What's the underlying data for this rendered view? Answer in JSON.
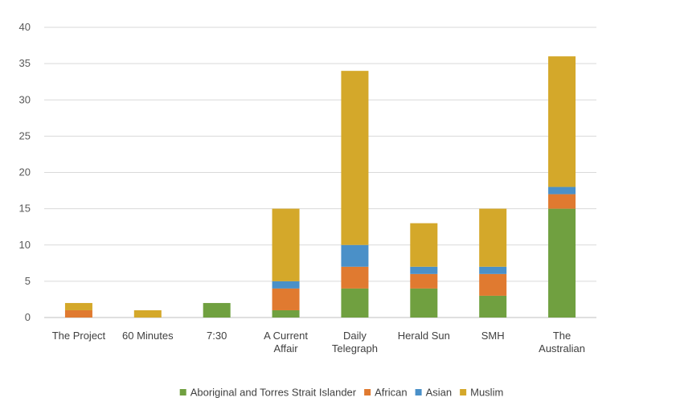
{
  "chart_data": {
    "type": "bar",
    "stacked": true,
    "title": "",
    "xlabel": "",
    "ylabel": "",
    "ylim": [
      0,
      40
    ],
    "yticks": [
      0,
      5,
      10,
      15,
      20,
      25,
      30,
      35,
      40
    ],
    "grid": true,
    "legend_position": "bottom",
    "categories": [
      [
        "The Project"
      ],
      [
        "60 Minutes"
      ],
      [
        "7:30"
      ],
      [
        "A Current",
        "Affair"
      ],
      [
        "Daily",
        "Telegraph"
      ],
      [
        "Herald Sun"
      ],
      [
        "SMH"
      ],
      [
        "The",
        "Australian"
      ]
    ],
    "series": [
      {
        "name": "Aboriginal and Torres Strait Islander",
        "color": "#70a040",
        "values": [
          0,
          0,
          2,
          1,
          4,
          4,
          3,
          15
        ]
      },
      {
        "name": "African",
        "color": "#e07a30",
        "values": [
          1,
          0,
          0,
          3,
          3,
          2,
          3,
          2
        ]
      },
      {
        "name": "Asian",
        "color": "#4a90c8",
        "values": [
          0,
          0,
          0,
          1,
          3,
          1,
          1,
          1
        ]
      },
      {
        "name": "Muslim",
        "color": "#d4a82a",
        "values": [
          1,
          1,
          0,
          10,
          24,
          6,
          8,
          18
        ]
      }
    ]
  }
}
